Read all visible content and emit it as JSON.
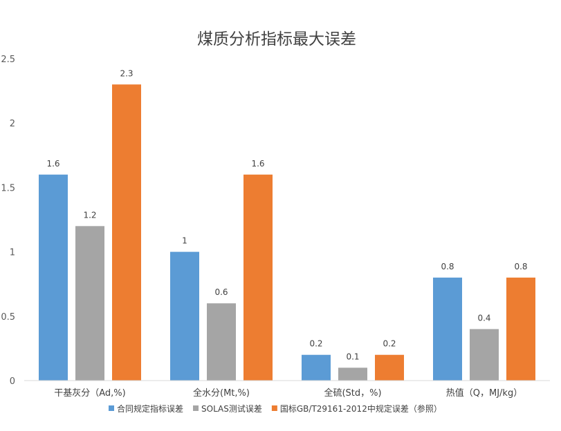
{
  "chart_data": {
    "type": "bar",
    "title": "煤质分析指标最大误差",
    "categories": [
      "干基灰分（Ad,%)",
      "全水分(Mt,%)",
      "全硫(Std，%)",
      "热值（Q，MJ/kg）"
    ],
    "series": [
      {
        "name": "合同规定指标误差",
        "values": [
          1.6,
          1,
          0.2,
          0.8
        ],
        "color": "#5b9bd5"
      },
      {
        "name": "SOLAS测试误差",
        "values": [
          1.2,
          0.6,
          0.1,
          0.4
        ],
        "color": "#a5a5a5"
      },
      {
        "name": "国标GB/T29161-2012中规定误差（参照）",
        "values": [
          2.3,
          1.6,
          0.2,
          0.8
        ],
        "color": "#ed7d31"
      }
    ],
    "yticks": [
      "0",
      "0.5",
      "1",
      "1.5",
      "2",
      "2.5"
    ],
    "ylim": [
      0,
      2.5
    ],
    "grid": false,
    "legend": "bottom"
  }
}
